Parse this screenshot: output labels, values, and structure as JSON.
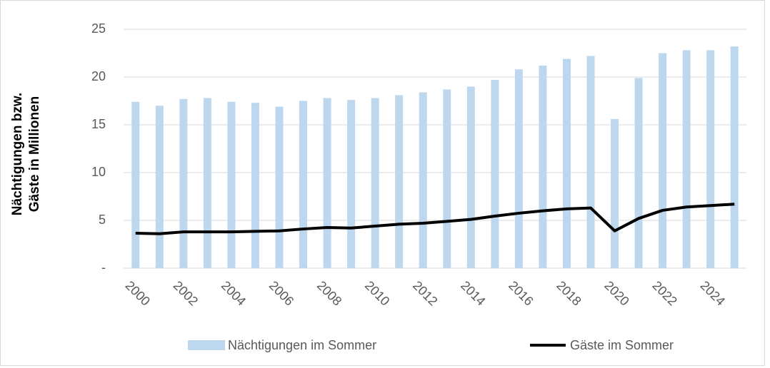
{
  "chart_data": {
    "type": "bar",
    "ylabel": "Nächtigungen bzw. Gäste in Millionen",
    "categories": [
      "2000",
      null,
      "2002",
      null,
      "2004",
      null,
      "2006",
      null,
      "2008",
      null,
      "2010",
      null,
      "2012",
      null,
      "2014",
      null,
      "2016",
      null,
      "2018",
      null,
      "2020",
      null,
      "2022",
      null,
      "2024",
      null
    ],
    "series": [
      {
        "name": "Nächtigungen im Sommer",
        "type": "bar",
        "color": "#bdd7ee",
        "values": [
          17.4,
          17.0,
          17.7,
          17.8,
          17.4,
          17.3,
          16.9,
          17.5,
          17.8,
          17.6,
          17.8,
          18.1,
          18.4,
          18.7,
          19.0,
          19.7,
          20.8,
          21.2,
          21.9,
          22.2,
          15.6,
          19.9,
          22.5,
          22.8,
          22.8,
          23.2
        ]
      },
      {
        "name": "Gäste im Sommer",
        "type": "line",
        "color": "#000000",
        "values": [
          3.66,
          3.6,
          3.8,
          3.8,
          3.8,
          3.85,
          3.9,
          4.1,
          4.25,
          4.2,
          4.4,
          4.6,
          4.7,
          4.9,
          5.1,
          5.45,
          5.75,
          6.0,
          6.2,
          6.3,
          3.9,
          5.2,
          6.05,
          6.4,
          6.55,
          6.7
        ]
      }
    ],
    "ylim": [
      0,
      25
    ],
    "yticks": [
      {
        "value": 0,
        "label": "-"
      },
      5,
      10,
      15,
      20,
      25
    ],
    "grid": true,
    "legend": "bottom"
  }
}
